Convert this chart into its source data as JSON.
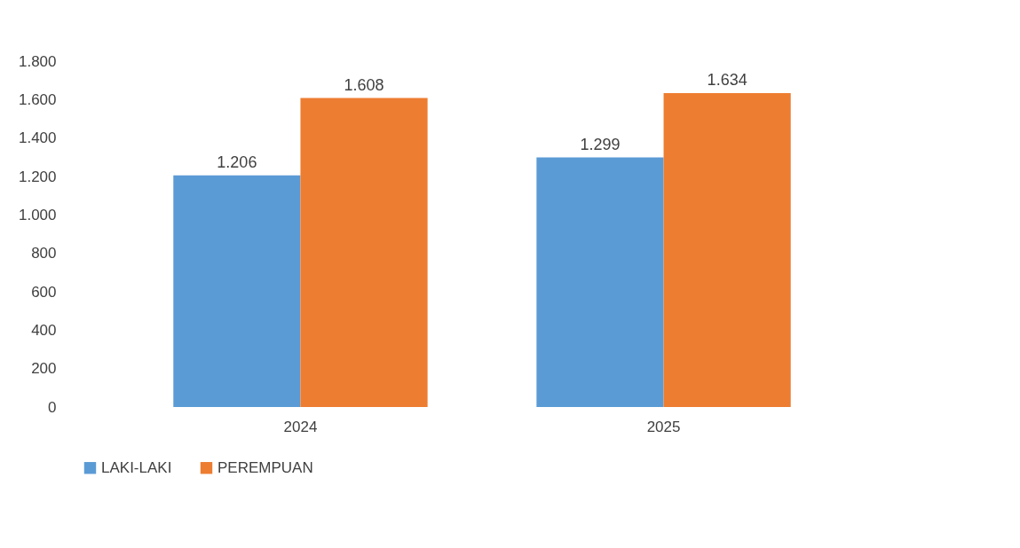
{
  "chart_data": {
    "type": "bar",
    "categories": [
      "2024",
      "2025"
    ],
    "series": [
      {
        "name": "LAKI-LAKI",
        "color": "#5b9bd5",
        "values": [
          1206,
          1299
        ],
        "value_labels": [
          "1.206",
          "1.299"
        ]
      },
      {
        "name": "PEREMPUAN",
        "color": "#ed7d31",
        "values": [
          1608,
          1634
        ],
        "value_labels": [
          "1.608",
          "1.634"
        ]
      }
    ],
    "ylim": [
      0,
      1800
    ],
    "yticks": [
      0,
      200,
      400,
      600,
      800,
      {
        "value": 1000,
        "label": "1.000"
      },
      {
        "value": 1200,
        "label": "1.200"
      },
      {
        "value": 1400,
        "label": "1.400"
      },
      {
        "value": 1600,
        "label": "1.600"
      },
      {
        "value": 1800,
        "label": "1.800"
      }
    ],
    "grid": false,
    "legend": "bottom"
  }
}
